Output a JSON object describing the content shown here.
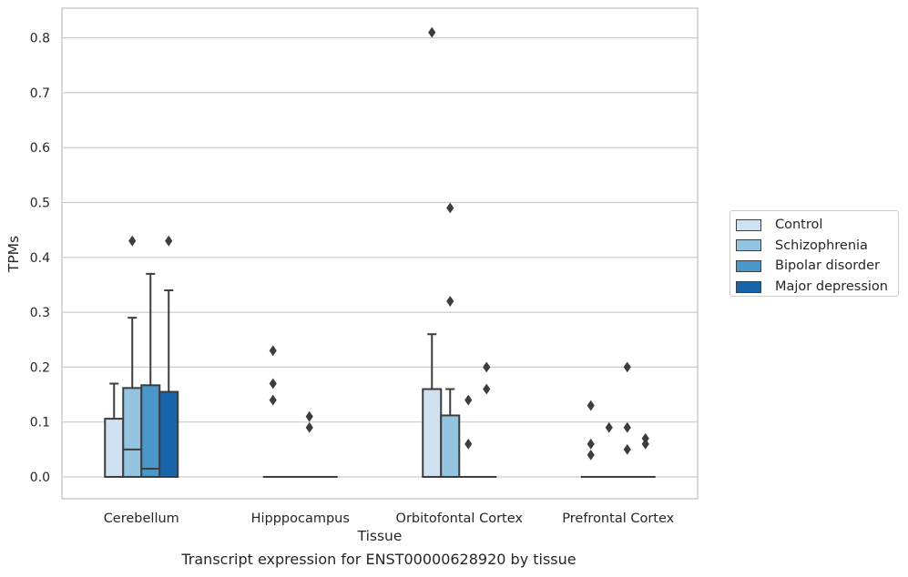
{
  "chart_data": {
    "type": "box",
    "title": "Transcript expression for ENST00000628920 by tissue",
    "xlabel": "Tissue",
    "ylabel": "TPMs",
    "ylim": [
      -0.04,
      0.85
    ],
    "yticks": [
      "0.0",
      "0.1",
      "0.2",
      "0.3",
      "0.4",
      "0.5",
      "0.6",
      "0.7",
      "0.8"
    ],
    "grid": true,
    "legend_position": "right",
    "categories": [
      "Cerebellum",
      "Hipppocampus",
      "Orbitofontal Cortex",
      "Prefrontal Cortex"
    ],
    "series": [
      {
        "name": "Control",
        "color": "#d0e1f2",
        "boxes": [
          {
            "q1": 0.0,
            "median": 0.0,
            "q3": 0.106,
            "whisker_low": 0.0,
            "whisker_high": 0.17,
            "outliers": []
          },
          {
            "q1": 0.0,
            "median": 0.0,
            "q3": 0.0,
            "whisker_low": 0.0,
            "whisker_high": 0.0,
            "outliers": [
              0.14,
              0.17,
              0.23
            ]
          },
          {
            "q1": 0.0,
            "median": 0.0,
            "q3": 0.16,
            "whisker_low": 0.0,
            "whisker_high": 0.26,
            "outliers": [
              0.81
            ]
          },
          {
            "q1": 0.0,
            "median": 0.0,
            "q3": 0.0,
            "whisker_low": 0.0,
            "whisker_high": 0.0,
            "outliers": [
              0.04,
              0.06,
              0.13
            ]
          }
        ]
      },
      {
        "name": "Schizophrenia",
        "color": "#94c4df",
        "boxes": [
          {
            "q1": 0.0,
            "median": 0.05,
            "q3": 0.162,
            "whisker_low": 0.0,
            "whisker_high": 0.29,
            "outliers": [
              0.43
            ]
          },
          {
            "q1": 0.0,
            "median": 0.0,
            "q3": 0.0,
            "whisker_low": 0.0,
            "whisker_high": 0.0,
            "outliers": []
          },
          {
            "q1": 0.0,
            "median": 0.0,
            "q3": 0.112,
            "whisker_low": 0.0,
            "whisker_high": 0.16,
            "outliers": [
              0.32,
              0.49
            ]
          },
          {
            "q1": 0.0,
            "median": 0.0,
            "q3": 0.0,
            "whisker_low": 0.0,
            "whisker_high": 0.0,
            "outliers": [
              0.09
            ]
          }
        ]
      },
      {
        "name": "Bipolar disorder",
        "color": "#4a98c9",
        "boxes": [
          {
            "q1": 0.0,
            "median": 0.015,
            "q3": 0.167,
            "whisker_low": 0.0,
            "whisker_high": 0.37,
            "outliers": []
          },
          {
            "q1": 0.0,
            "median": 0.0,
            "q3": 0.0,
            "whisker_low": 0.0,
            "whisker_high": 0.0,
            "outliers": [
              0.09,
              0.11
            ]
          },
          {
            "q1": 0.0,
            "median": 0.0,
            "q3": 0.0,
            "whisker_low": 0.0,
            "whisker_high": 0.0,
            "outliers": [
              0.06,
              0.14
            ]
          },
          {
            "q1": 0.0,
            "median": 0.0,
            "q3": 0.0,
            "whisker_low": 0.0,
            "whisker_high": 0.0,
            "outliers": [
              0.05,
              0.09,
              0.2
            ]
          }
        ]
      },
      {
        "name": "Major depression",
        "color": "#1764ab",
        "boxes": [
          {
            "q1": 0.0,
            "median": 0.0,
            "q3": 0.155,
            "whisker_low": 0.0,
            "whisker_high": 0.34,
            "outliers": [
              0.43
            ]
          },
          {
            "q1": 0.0,
            "median": 0.0,
            "q3": 0.0,
            "whisker_low": 0.0,
            "whisker_high": 0.0,
            "outliers": []
          },
          {
            "q1": 0.0,
            "median": 0.0,
            "q3": 0.0,
            "whisker_low": 0.0,
            "whisker_high": 0.0,
            "outliers": [
              0.16,
              0.2
            ]
          },
          {
            "q1": 0.0,
            "median": 0.0,
            "q3": 0.0,
            "whisker_low": 0.0,
            "whisker_high": 0.0,
            "outliers": [
              0.06,
              0.07
            ]
          }
        ]
      }
    ]
  }
}
